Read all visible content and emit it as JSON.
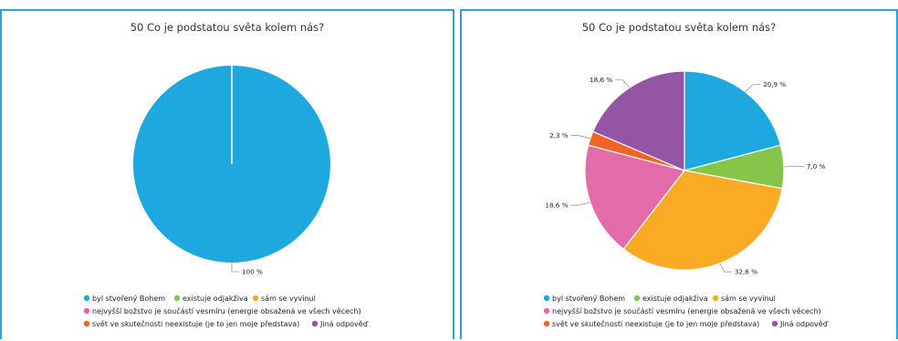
{
  "chart_data": [
    {
      "type": "pie",
      "title": "50 Co je podstatou světa kolem nás?",
      "categories": [
        "byl stvořený Bohem",
        "existuje odjakživa",
        "sám se vyvinul",
        "nejvyšší božstvo je součástí vesmíru (energie obsažená ve všech věcech)",
        "svět ve skutečnosti neexistuje (je to jen moje představa)",
        "Jiná odpověď"
      ],
      "values": [
        100,
        0,
        0,
        0,
        0,
        0
      ],
      "labels": [
        "100 %"
      ],
      "legend_position": "bottom"
    },
    {
      "type": "pie",
      "title": "50 Co je podstatou světa kolem nás?",
      "categories": [
        "byl stvořený Bohem",
        "existuje odjakživa",
        "sám se vyvinul",
        "nejvyšší božstvo je součástí vesmíru (energie obsažená ve všech věcech)",
        "svět ve skutečnosti neexistuje (je to jen moje představa)",
        "Jiná odpověď"
      ],
      "values": [
        20.9,
        7.0,
        32.6,
        18.6,
        2.3,
        18.6
      ],
      "labels": [
        "20,9 %",
        "7,0 %",
        "32,6 %",
        "18,6 %",
        "2,3 %",
        "18,6 %"
      ],
      "legend_position": "bottom"
    }
  ],
  "colors": [
    "#1ea8e0",
    "#84c54a",
    "#fbaa23",
    "#e46ba9",
    "#f06527",
    "#9456a4"
  ]
}
